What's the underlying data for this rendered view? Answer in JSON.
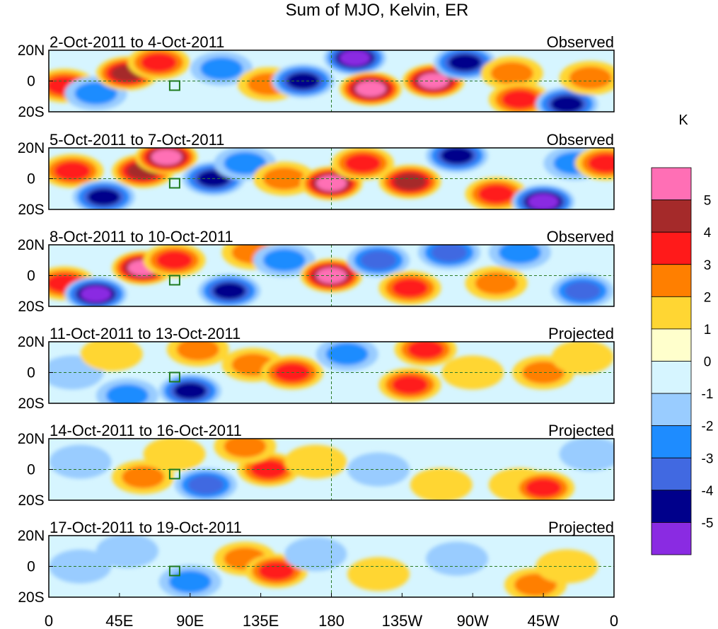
{
  "title": "Sum of MJO, Kelvin, ER",
  "lat_ticks": [
    "20N",
    "0",
    "20S"
  ],
  "lon_ticks": [
    "0",
    "45E",
    "90E",
    "135E",
    "180",
    "135W",
    "90W",
    "45W",
    "0"
  ],
  "units": "K",
  "colorbar": {
    "labels": [
      "5",
      "4",
      "3",
      "2",
      "1",
      "0",
      "-1",
      "-2",
      "-3",
      "-4",
      "-5"
    ],
    "colors": [
      "#ff6fb5",
      "#a52a2a",
      "#ff1a1a",
      "#ff7f00",
      "#ffd633",
      "#ffffcc",
      "#d6f5ff",
      "#99ccff",
      "#1e8cff",
      "#4169e1",
      "#00008b",
      "#8a2be2"
    ]
  },
  "panels": [
    {
      "date": "2-Oct-2011 to 4-Oct-2011",
      "status": "Observed"
    },
    {
      "date": "5-Oct-2011 to 7-Oct-2011",
      "status": "Observed"
    },
    {
      "date": "8-Oct-2011 to 10-Oct-2011",
      "status": "Observed"
    },
    {
      "date": "11-Oct-2011 to 13-Oct-2011",
      "status": "Projected"
    },
    {
      "date": "14-Oct-2011 to 16-Oct-2011",
      "status": "Projected"
    },
    {
      "date": "17-Oct-2011 to 19-Oct-2011",
      "status": "Projected"
    }
  ],
  "anomaly_blobs": [
    [
      {
        "lon": 10,
        "lat": -3,
        "v": 3
      },
      {
        "lon": 30,
        "lat": -8,
        "v": -2
      },
      {
        "lon": 50,
        "lat": 5,
        "v": 4
      },
      {
        "lon": 70,
        "lat": 12,
        "v": 3
      },
      {
        "lon": 110,
        "lat": 8,
        "v": -2
      },
      {
        "lon": 140,
        "lat": -2,
        "v": 2
      },
      {
        "lon": 162,
        "lat": 0,
        "v": -4
      },
      {
        "lon": 195,
        "lat": 15,
        "v": -5
      },
      {
        "lon": 205,
        "lat": -5,
        "v": 5
      },
      {
        "lon": 245,
        "lat": 0,
        "v": 5
      },
      {
        "lon": 265,
        "lat": 12,
        "v": -4
      },
      {
        "lon": 295,
        "lat": 5,
        "v": 2
      },
      {
        "lon": 300,
        "lat": -12,
        "v": 3
      },
      {
        "lon": 330,
        "lat": -15,
        "v": -4
      },
      {
        "lon": 345,
        "lat": 2,
        "v": 2
      }
    ],
    [
      {
        "lon": 15,
        "lat": 5,
        "v": 3
      },
      {
        "lon": 35,
        "lat": -12,
        "v": -4
      },
      {
        "lon": 60,
        "lat": 5,
        "v": 4
      },
      {
        "lon": 75,
        "lat": 14,
        "v": 5
      },
      {
        "lon": 105,
        "lat": 0,
        "v": -4
      },
      {
        "lon": 125,
        "lat": 10,
        "v": -2
      },
      {
        "lon": 150,
        "lat": 0,
        "v": 2
      },
      {
        "lon": 180,
        "lat": -3,
        "v": 5
      },
      {
        "lon": 200,
        "lat": 10,
        "v": 3
      },
      {
        "lon": 230,
        "lat": -2,
        "v": 4
      },
      {
        "lon": 260,
        "lat": 15,
        "v": -4
      },
      {
        "lon": 285,
        "lat": -10,
        "v": 3
      },
      {
        "lon": 315,
        "lat": -15,
        "v": -5
      },
      {
        "lon": 335,
        "lat": 10,
        "v": -2
      },
      {
        "lon": 355,
        "lat": 10,
        "v": 3
      }
    ],
    [
      {
        "lon": 10,
        "lat": -5,
        "v": 3
      },
      {
        "lon": 30,
        "lat": -12,
        "v": -5
      },
      {
        "lon": 60,
        "lat": 5,
        "v": 5
      },
      {
        "lon": 80,
        "lat": 10,
        "v": 3
      },
      {
        "lon": 115,
        "lat": -10,
        "v": -4
      },
      {
        "lon": 130,
        "lat": 15,
        "v": 2
      },
      {
        "lon": 150,
        "lat": 10,
        "v": -2
      },
      {
        "lon": 180,
        "lat": 0,
        "v": 5
      },
      {
        "lon": 210,
        "lat": 10,
        "v": -3
      },
      {
        "lon": 230,
        "lat": -8,
        "v": 3
      },
      {
        "lon": 255,
        "lat": 15,
        "v": -3
      },
      {
        "lon": 285,
        "lat": -5,
        "v": 2
      },
      {
        "lon": 300,
        "lat": 15,
        "v": -2
      },
      {
        "lon": 340,
        "lat": -10,
        "v": -3
      }
    ],
    [
      {
        "lon": 15,
        "lat": 0,
        "v": -1
      },
      {
        "lon": 40,
        "lat": 12,
        "v": 1
      },
      {
        "lon": 50,
        "lat": -15,
        "v": -2
      },
      {
        "lon": 90,
        "lat": -12,
        "v": -4
      },
      {
        "lon": 95,
        "lat": 15,
        "v": 2
      },
      {
        "lon": 130,
        "lat": 5,
        "v": 2
      },
      {
        "lon": 155,
        "lat": 0,
        "v": 3
      },
      {
        "lon": 190,
        "lat": 12,
        "v": -2
      },
      {
        "lon": 230,
        "lat": -8,
        "v": 3
      },
      {
        "lon": 240,
        "lat": 15,
        "v": 3
      },
      {
        "lon": 270,
        "lat": 0,
        "v": 1
      },
      {
        "lon": 315,
        "lat": 0,
        "v": 2
      },
      {
        "lon": 340,
        "lat": 10,
        "v": 1
      }
    ],
    [
      {
        "lon": 20,
        "lat": 5,
        "v": -1
      },
      {
        "lon": 60,
        "lat": -5,
        "v": 2
      },
      {
        "lon": 80,
        "lat": 10,
        "v": 1
      },
      {
        "lon": 100,
        "lat": -10,
        "v": -3
      },
      {
        "lon": 140,
        "lat": 0,
        "v": 3
      },
      {
        "lon": 125,
        "lat": 15,
        "v": 2
      },
      {
        "lon": 170,
        "lat": 5,
        "v": 1
      },
      {
        "lon": 210,
        "lat": 0,
        "v": -1
      },
      {
        "lon": 250,
        "lat": -10,
        "v": 1
      },
      {
        "lon": 300,
        "lat": -10,
        "v": 1
      },
      {
        "lon": 315,
        "lat": -12,
        "v": 3
      },
      {
        "lon": 345,
        "lat": 10,
        "v": -1
      }
    ],
    [
      {
        "lon": 20,
        "lat": 0,
        "v": -1
      },
      {
        "lon": 50,
        "lat": 10,
        "v": -1
      },
      {
        "lon": 90,
        "lat": -10,
        "v": -2
      },
      {
        "lon": 125,
        "lat": 5,
        "v": 2
      },
      {
        "lon": 145,
        "lat": -3,
        "v": 3
      },
      {
        "lon": 170,
        "lat": 8,
        "v": -1
      },
      {
        "lon": 210,
        "lat": -5,
        "v": 1
      },
      {
        "lon": 260,
        "lat": 5,
        "v": -1
      },
      {
        "lon": 310,
        "lat": -12,
        "v": 2
      },
      {
        "lon": 330,
        "lat": 0,
        "v": 1
      }
    ]
  ]
}
